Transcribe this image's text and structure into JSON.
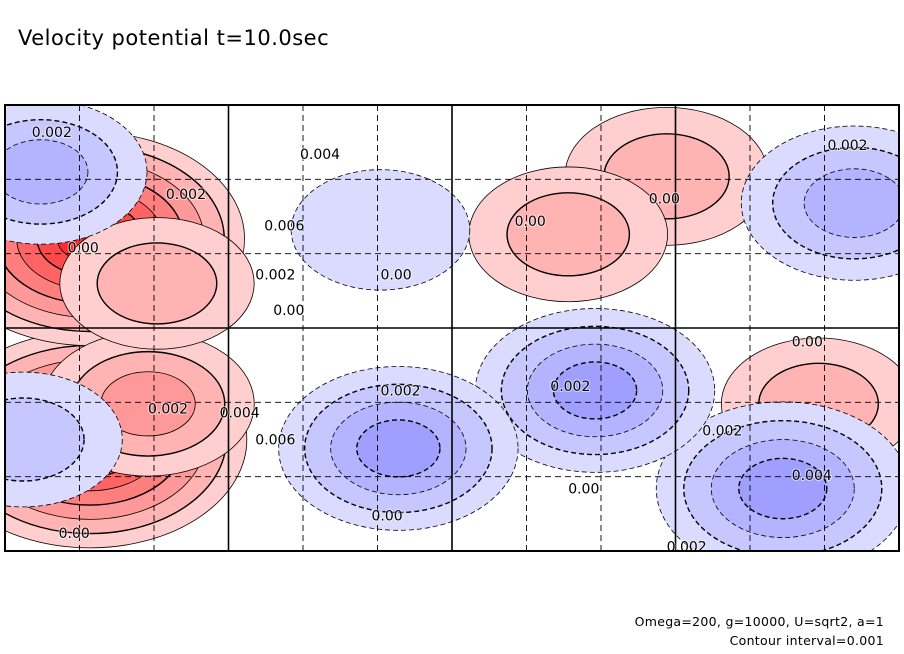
{
  "title": "Velocity potential t=10.0sec",
  "footer": {
    "params": "Omega=200, g=10000, U=sqrt2, a=1",
    "interval": "Contour interval=0.001"
  },
  "chart_data": {
    "type": "heatmap",
    "title": "Velocity potential t=10.0sec",
    "colormap": {
      "negative": "#5a5aff",
      "zero": "#ffffff",
      "positive": "#ff2020"
    },
    "grid": true,
    "contour_interval": 0.001,
    "features": [
      {
        "sign": "positive",
        "peak": 0.0075,
        "cx": 0.095,
        "cy": 0.75
      },
      {
        "sign": "positive",
        "peak": 0.0073,
        "cx": 0.095,
        "cy": 0.3
      },
      {
        "sign": "positive",
        "peak": 0.003,
        "cx": 0.16,
        "cy": 0.67
      },
      {
        "sign": "positive",
        "peak": 0.0022,
        "cx": 0.17,
        "cy": 0.4
      },
      {
        "sign": "positive",
        "peak": 0.0026,
        "cx": 0.74,
        "cy": 0.16
      },
      {
        "sign": "positive",
        "peak": 0.0024,
        "cx": 0.63,
        "cy": 0.29
      },
      {
        "sign": "positive",
        "peak": 0.0022,
        "cx": 0.91,
        "cy": 0.67
      },
      {
        "sign": "negative",
        "peak": -0.0048,
        "cx": 0.87,
        "cy": 0.86
      },
      {
        "sign": "negative",
        "peak": -0.0042,
        "cx": 0.66,
        "cy": 0.64
      },
      {
        "sign": "negative",
        "peak": -0.0042,
        "cx": 0.44,
        "cy": 0.77
      },
      {
        "sign": "negative",
        "peak": -0.0036,
        "cx": 0.95,
        "cy": 0.22
      },
      {
        "sign": "negative",
        "peak": -0.003,
        "cx": 0.04,
        "cy": 0.15
      },
      {
        "sign": "negative",
        "peak": -0.0024,
        "cx": 0.02,
        "cy": 0.75
      },
      {
        "sign": "negative",
        "peak": -0.0015,
        "cx": 0.42,
        "cy": 0.28
      }
    ],
    "contour_labels": [
      {
        "text": "0.002",
        "x": 0.03,
        "y": 0.06
      },
      {
        "text": "0.002",
        "x": 0.92,
        "y": 0.09
      },
      {
        "text": "0.004",
        "x": 0.33,
        "y": 0.11
      },
      {
        "text": "0.002",
        "x": 0.18,
        "y": 0.2
      },
      {
        "text": "0.00",
        "x": 0.72,
        "y": 0.21
      },
      {
        "text": "0.006",
        "x": 0.29,
        "y": 0.27
      },
      {
        "text": "0.00",
        "x": 0.57,
        "y": 0.26
      },
      {
        "text": "0.00",
        "x": 0.07,
        "y": 0.32
      },
      {
        "text": "0.002",
        "x": 0.28,
        "y": 0.38
      },
      {
        "text": "0.00",
        "x": 0.42,
        "y": 0.38
      },
      {
        "text": "0.00",
        "x": 0.3,
        "y": 0.46
      },
      {
        "text": "0.00",
        "x": 0.88,
        "y": 0.53
      },
      {
        "text": "0.002",
        "x": 0.42,
        "y": 0.64
      },
      {
        "text": "0.002",
        "x": 0.61,
        "y": 0.63
      },
      {
        "text": "0.002",
        "x": 0.16,
        "y": 0.68
      },
      {
        "text": "0.004",
        "x": 0.24,
        "y": 0.69
      },
      {
        "text": "0.006",
        "x": 0.28,
        "y": 0.75
      },
      {
        "text": "0.002",
        "x": 0.78,
        "y": 0.73
      },
      {
        "text": "0.004",
        "x": 0.88,
        "y": 0.83
      },
      {
        "text": "0.00",
        "x": 0.63,
        "y": 0.86
      },
      {
        "text": "0.00",
        "x": 0.41,
        "y": 0.92
      },
      {
        "text": "0.00",
        "x": 0.06,
        "y": 0.96
      },
      {
        "text": "0.002",
        "x": 0.74,
        "y": 0.99
      }
    ]
  }
}
